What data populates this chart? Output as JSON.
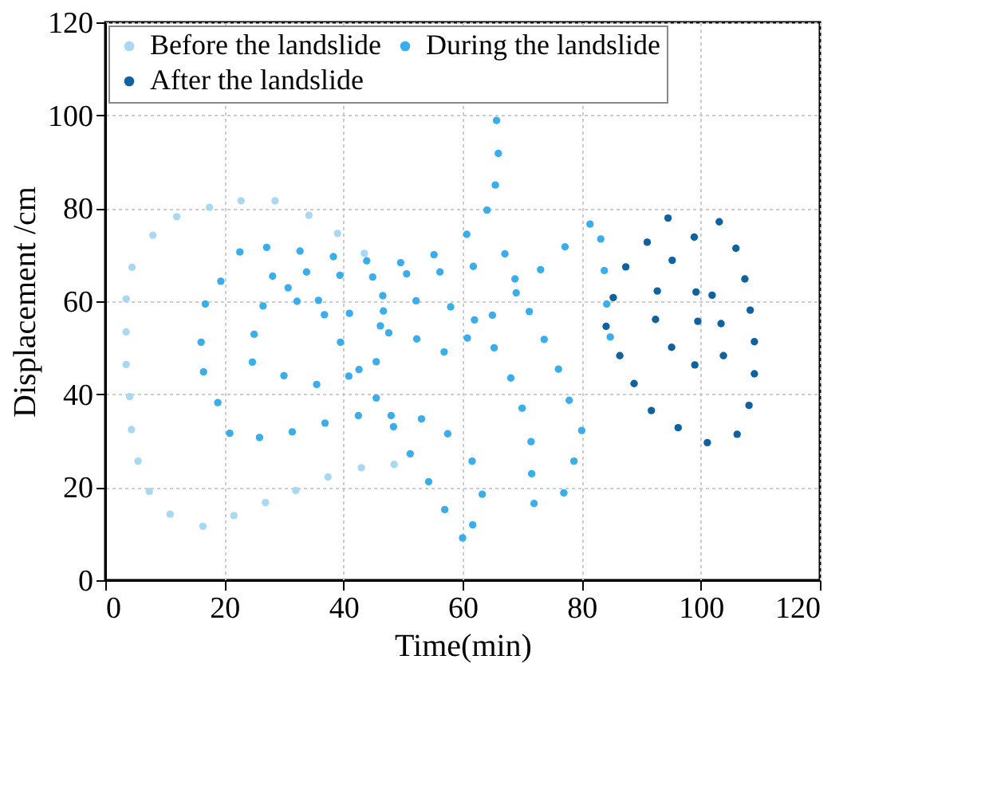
{
  "chart_data": {
    "type": "scatter",
    "xlabel": "Time(min)",
    "ylabel": "Displacement /cm",
    "xlim": [
      0,
      120
    ],
    "ylim": [
      0,
      120
    ],
    "xticks": [
      0,
      20,
      40,
      60,
      80,
      100,
      120
    ],
    "yticks": [
      0,
      20,
      40,
      60,
      80,
      100,
      120
    ],
    "grid": true,
    "legend": "top left",
    "marker": "circle",
    "series": [
      {
        "name": "Before the landslide",
        "color": "#a9d9f2",
        "x": [
          43.5,
          39,
          34.2,
          28.5,
          22.8,
          17.5,
          12,
          8,
          4.5,
          3.5,
          3.5,
          3.5,
          4.1,
          4.4,
          5.5,
          7.4,
          10.9,
          16.4,
          21.6,
          26.9,
          32,
          37.4,
          43,
          48.5
        ],
        "values": [
          70.3,
          74.6,
          78.5,
          81.6,
          81.6,
          80.2,
          78.2,
          74.2,
          67.3,
          60.5,
          53.4,
          46.4,
          39.5,
          32.4,
          25.6,
          19.1,
          14.2,
          11.6,
          13.9,
          16.7,
          19.3,
          22.2,
          24.2,
          24.9
        ]
      },
      {
        "name": "During the landslide",
        "color": "#3aaeea",
        "x": [
          16.8,
          16.1,
          16.5,
          18.9,
          20.9,
          25.9,
          31.4,
          36.9,
          42.5,
          48,
          48.4,
          51.2,
          54.3,
          57,
          60,
          61.7,
          63.3,
          61.6,
          57.5,
          53.1,
          45.5,
          45.5,
          42.6,
          40.9,
          39.5,
          36.8,
          35.8,
          32.2,
          30.7,
          28.1,
          26.5,
          25,
          24.7,
          30,
          35.5,
          19.4,
          22.6,
          27.1,
          32.7,
          38.3,
          43.9,
          49.6,
          55.2,
          60.7,
          64.1,
          65.5,
          66,
          65.7,
          33.8,
          39.4,
          44.9,
          50.6,
          56.2,
          61.8,
          67.1,
          77.2,
          81.4,
          83.2,
          83.8,
          84.2,
          84.8,
          68.8,
          69,
          71.2,
          73.7,
          76.1,
          77.9,
          80,
          78.7,
          77,
          72,
          71.6,
          71.5,
          70,
          68.1,
          65.3,
          65,
          62,
          60.8,
          56.9,
          52.3,
          47.6,
          46.7,
          46.6,
          52.2,
          58,
          73.1,
          41,
          46.2
        ],
        "values": [
          59.4,
          51.2,
          44.8,
          38.2,
          31.6,
          30.7,
          31.9,
          33.8,
          35.4,
          35.4,
          33,
          27.2,
          21.2,
          15.2,
          9.1,
          11.9,
          18.5,
          25.6,
          31.5,
          34.7,
          39.2,
          47,
          45.3,
          43.9,
          51.2,
          57.1,
          60.2,
          60,
          62.9,
          65.4,
          59,
          52.9,
          46.9,
          44,
          42.1,
          64.3,
          70.6,
          71.6,
          70.8,
          69.6,
          68.7,
          68.3,
          70,
          74.4,
          79.6,
          85,
          91.8,
          98.9,
          66.3,
          65.6,
          65.2,
          65.9,
          66.3,
          67.5,
          70.2,
          71.7,
          76.6,
          73.4,
          66.6,
          59.4,
          52.3,
          64.8,
          61.8,
          57.8,
          51.8,
          45.4,
          38.7,
          32.2,
          25.6,
          18.8,
          16.5,
          22.9,
          29.8,
          37,
          43.5,
          50,
          57,
          56,
          52.1,
          49.1,
          51.9,
          53.2,
          57.9,
          61.2,
          60.1,
          58.8,
          66.8,
          57.4,
          54.7
        ]
      },
      {
        "name": "After the landslide",
        "color": "#0f62a0",
        "x": [
          94.5,
          103.1,
          91,
          98.9,
          105.9,
          87.4,
          95.2,
          107.4,
          85.3,
          92.7,
          99.2,
          101.9,
          108.3,
          84.1,
          92.4,
          99.5,
          103.4,
          109,
          86.4,
          95.1,
          99,
          103.8,
          109,
          88.8,
          91.7,
          108.1,
          96.2,
          101.1,
          106.1
        ],
        "values": [
          77.9,
          77.1,
          72.7,
          73.8,
          71.4,
          67.4,
          68.8,
          64.8,
          60.8,
          62.2,
          62,
          61.3,
          58.1,
          54.6,
          56.1,
          55.7,
          55.2,
          51.3,
          48.3,
          50.1,
          46.3,
          48.3,
          44.4,
          42.3,
          36.5,
          37.6,
          32.8,
          29.6,
          31.4
        ]
      }
    ]
  }
}
